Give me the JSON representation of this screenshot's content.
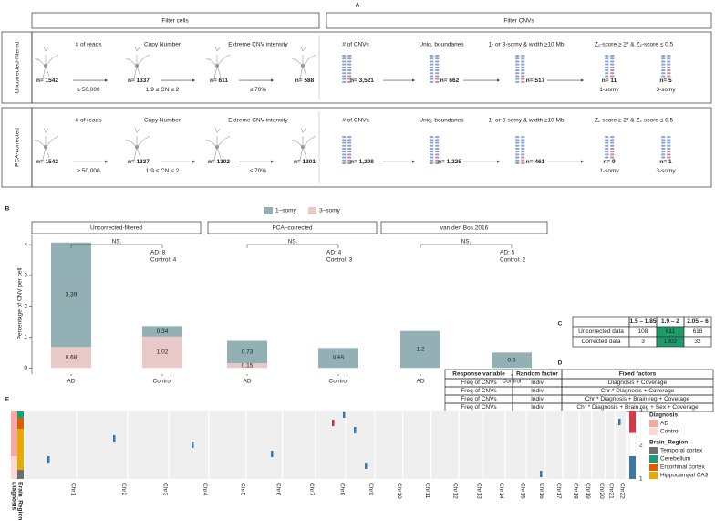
{
  "panel_a": {
    "label": "A",
    "headers": [
      "Filter cells",
      "Filter CNVs"
    ],
    "steps": [
      {
        "title": "# of reads",
        "threshold": "≥ 50,000"
      },
      {
        "title": "Copy Number",
        "threshold": "1.9 ≤ CN ≤ 2"
      },
      {
        "title": "Extreme CNV intensity",
        "threshold": "≤ 70%"
      },
      {
        "title": "# of CNVs"
      },
      {
        "title": "Uniq. boundaries"
      },
      {
        "title": "1- or 3-somy & width ≥10 Mb"
      },
      {
        "title": "Z₁-score ≥ 2* & Z₂-score ≤ 0.5"
      }
    ],
    "rows": [
      {
        "name": "Uncorrected-filtered",
        "counts": [
          "n= 1542",
          "n= 1337",
          "n= 611",
          "n= 588",
          "n= 3,521",
          "n= 662",
          "n= 517",
          "n= 11",
          "n= 5"
        ],
        "somy_labels": [
          "1-somy",
          "3-somy"
        ]
      },
      {
        "name": "PCA-corrected",
        "counts": [
          "n= 1542",
          "n= 1337",
          "n= 1302",
          "n= 1301",
          "n= 1,298",
          "n= 1,225",
          "n= 461",
          "n= 9",
          "n= 1"
        ],
        "somy_labels": [
          "1-somy",
          "3-somy"
        ]
      }
    ]
  },
  "panel_b": {
    "label": "B",
    "y_label": "Percentage of CNV per cell"
  },
  "chart_data": [
    {
      "type": "bar",
      "stacked": true,
      "title": "Uncorrected-filtered",
      "categories": [
        "AD",
        "Control"
      ],
      "series": [
        {
          "name": "1–somy",
          "color": "#93b1b5",
          "values": [
            3.39,
            0.34
          ]
        },
        {
          "name": "3–somy",
          "color": "#e9c9c7",
          "values": [
            0.68,
            1.02
          ]
        }
      ],
      "ylim": [
        -0.2,
        4.3
      ],
      "yticks": [
        0,
        1,
        2,
        3,
        4
      ],
      "significance": "NS.",
      "counts": [
        "AD: 8",
        "Control: 4"
      ]
    },
    {
      "type": "bar",
      "stacked": true,
      "title": "PCA–corrected",
      "categories": [
        "AD",
        "Control"
      ],
      "series": [
        {
          "name": "1–somy",
          "color": "#93b1b5",
          "values": [
            0.73,
            0.65
          ]
        },
        {
          "name": "3–somy",
          "color": "#e9c9c7",
          "values": [
            0.15,
            null
          ]
        }
      ],
      "ylim": [
        -0.2,
        4.3
      ],
      "significance": "NS.",
      "counts": [
        "AD: 4",
        "Control: 3"
      ]
    },
    {
      "type": "bar",
      "stacked": true,
      "title": "van den Bos 2016",
      "categories": [
        "AD",
        "Control"
      ],
      "series": [
        {
          "name": "1–somy",
          "color": "#93b1b5",
          "values": [
            1.2,
            0.5
          ]
        },
        {
          "name": "3–somy",
          "color": "#e9c9c7",
          "values": [
            null,
            null
          ]
        }
      ],
      "ylim": [
        -0.2,
        4.3
      ],
      "significance": "NS.",
      "counts": [
        "AD: 5",
        "Control: 2"
      ]
    }
  ],
  "panel_c": {
    "label": "C",
    "header": [
      "1.5 – 1.85",
      "1.9 – 2",
      "2.05 – 6"
    ],
    "rows": [
      [
        "Uncorrected data",
        108,
        611,
        618
      ],
      [
        "Corrected data",
        3,
        1302,
        32
      ]
    ]
  },
  "panel_d": {
    "label": "D",
    "header": [
      "Response variable",
      "Random factor",
      "Fixed factors"
    ],
    "rows": [
      [
        "Freq of CNVs",
        "Indiv",
        "Diagnosis + Coverage"
      ],
      [
        "Freq of CNVs",
        "Indiv",
        "Chr * Diagnosis + Coverage"
      ],
      [
        "Freq of CNVs",
        "Indiv",
        "Chr * Diagnosis + Brain reg + Coverage"
      ],
      [
        "Freq of CNVs",
        "Indiv",
        "Chr * Diagnosis + Brain reg + Sex + Coverage"
      ]
    ]
  },
  "panel_e": {
    "label": "E",
    "chromosomes": [
      "Chr1",
      "Chr2",
      "Chr3",
      "Chr4",
      "Chr5",
      "Chr6",
      "Chr7",
      "Chr8",
      "Chr9",
      "Chr10",
      "Chr11",
      "Chr12",
      "Chr13",
      "Chr14",
      "Chr15",
      "Chr16",
      "Chr17",
      "Chr18",
      "Chr19",
      "Chr20",
      "Chr21",
      "Chr22"
    ],
    "row_labels": [
      "Brain_Region",
      "Diagnosis"
    ],
    "colorbar_ticks": [
      3,
      2,
      1
    ],
    "legends": [
      {
        "title": "Diagnosis",
        "items": [
          {
            "label": "AD",
            "color": "#f6aaa6"
          },
          {
            "label": "Control",
            "color": "#fbd8d2"
          }
        ]
      },
      {
        "title": "Brain_Region",
        "items": [
          {
            "label": "Temporal cortex",
            "color": "#6e6e6e"
          },
          {
            "label": "Cerebellum",
            "color": "#1b9e77"
          },
          {
            "label": "Entorhinal cortex",
            "color": "#d95f02"
          },
          {
            "label": "Hippocampal CA3",
            "color": "#e6ab02"
          }
        ]
      }
    ]
  }
}
